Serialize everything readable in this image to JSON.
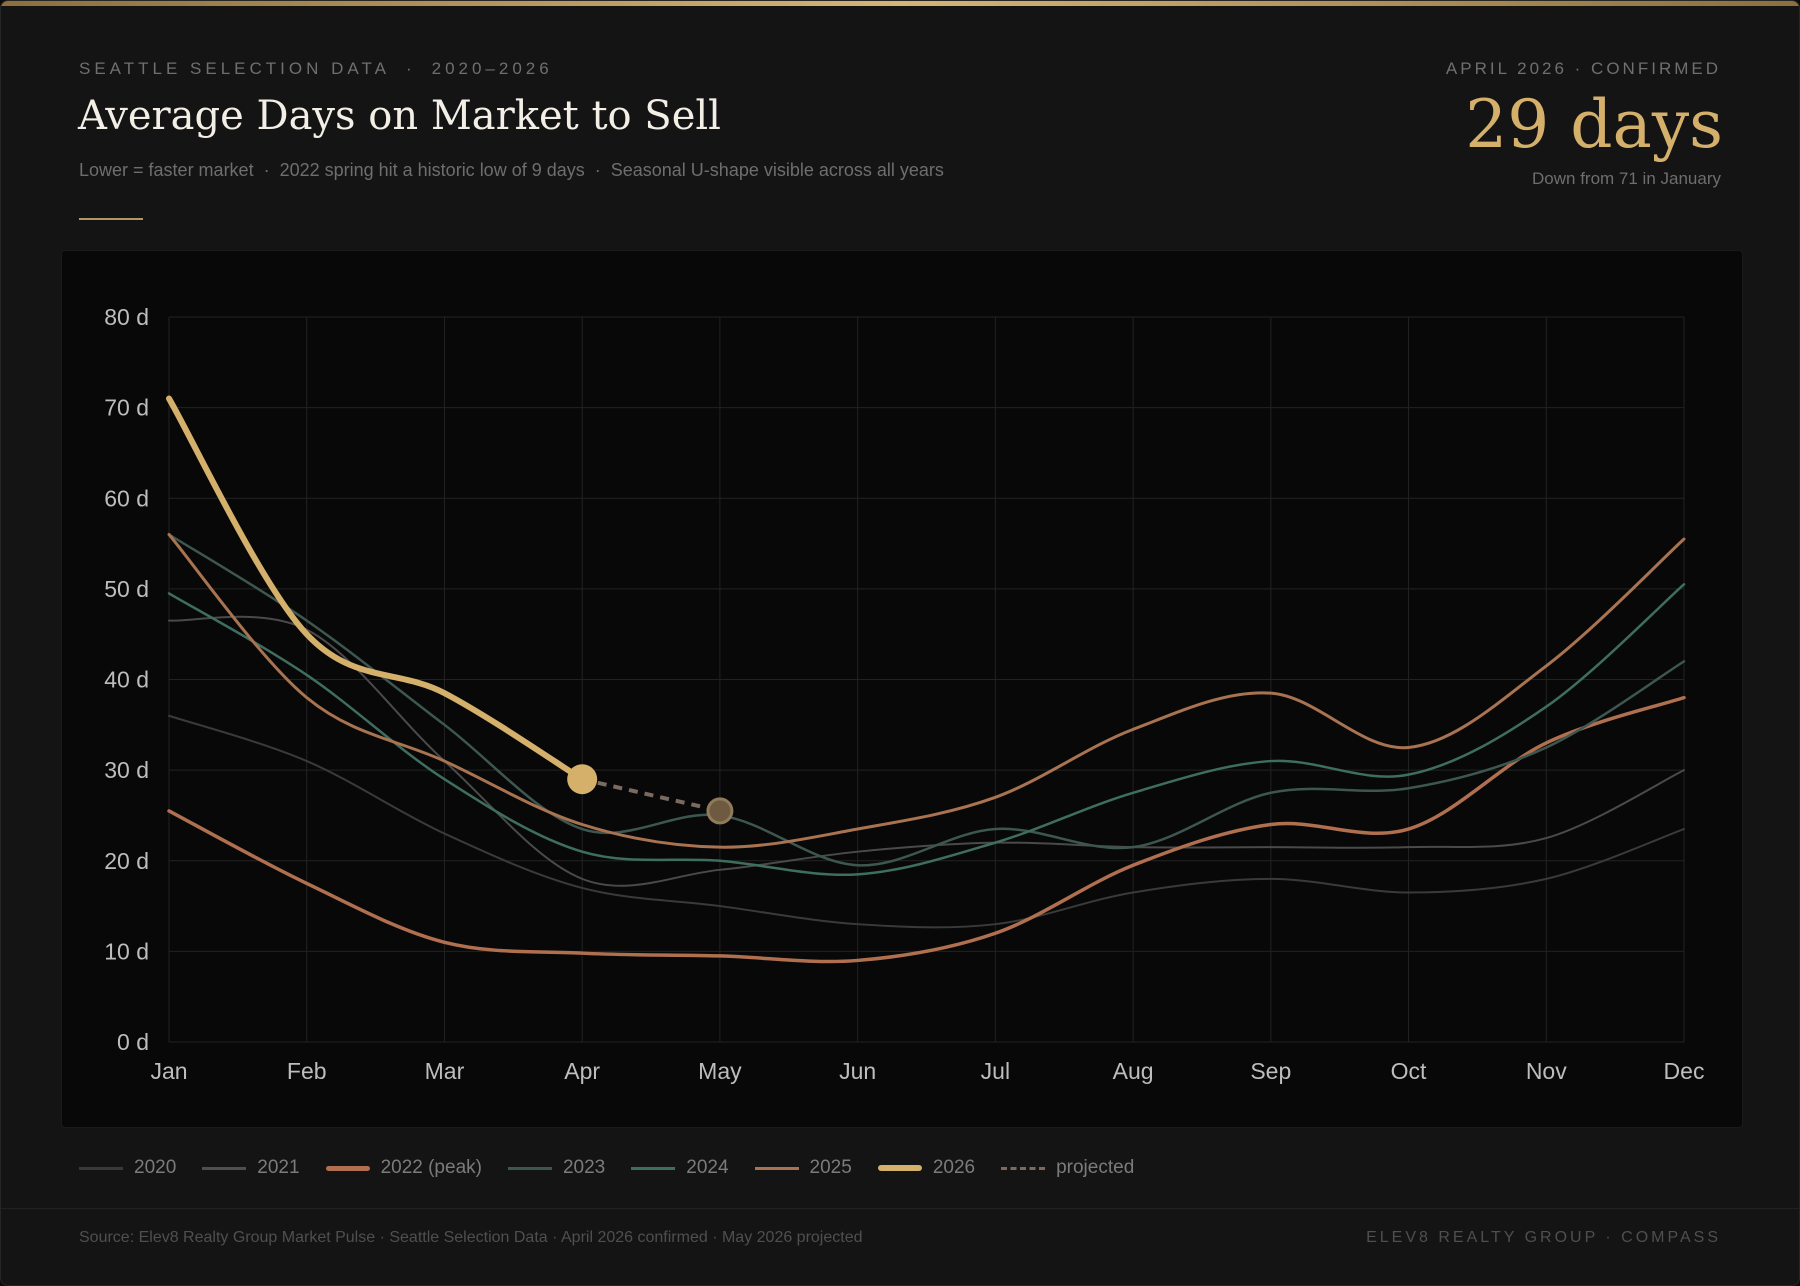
{
  "header": {
    "eyebrow_left": "SEATTLE SELECTION DATA",
    "eyebrow_sep": "·",
    "eyebrow_right": "2020–2026",
    "title": "Average Days on Market to Sell",
    "subtitle_items": [
      "Lower = faster market",
      "2022 spring hit a historic low of 9 days",
      "Seasonal U-shape visible across all years"
    ],
    "subtitle_sep": "·"
  },
  "kpi": {
    "label": "APRIL 2026 · CONFIRMED",
    "value": "29 days",
    "note": "Down from 71 in January"
  },
  "chart_data": {
    "type": "line",
    "title": "Average Days on Market to Sell",
    "categories": [
      "Jan",
      "Feb",
      "Mar",
      "Apr",
      "May",
      "Jun",
      "Jul",
      "Aug",
      "Sep",
      "Oct",
      "Nov",
      "Dec"
    ],
    "y_tick_labels": [
      "0 d",
      "10 d",
      "20 d",
      "30 d",
      "40 d",
      "50 d",
      "60 d",
      "70 d",
      "80 d"
    ],
    "ylim": [
      0,
      80
    ],
    "grid": true,
    "legend_position": "bottom-left",
    "series": [
      {
        "name": "2020",
        "color": "#3a3a3a",
        "values": [
          36,
          31,
          23,
          17,
          15,
          13,
          13,
          16.5,
          18,
          16.5,
          18,
          23.5
        ]
      },
      {
        "name": "2021",
        "color": "#4a4a4a",
        "values": [
          46.5,
          45.5,
          31,
          18,
          19,
          21,
          22,
          21.5,
          21.5,
          21.5,
          22.5,
          30
        ]
      },
      {
        "name": "2022 (peak)",
        "color": "#b07050",
        "values": [
          25.5,
          17.5,
          11,
          9.8,
          9.5,
          9,
          12,
          19.5,
          24,
          23.5,
          33,
          38
        ]
      },
      {
        "name": "2023",
        "color": "#3d5750",
        "values": [
          56,
          46.5,
          35,
          23.5,
          25,
          19.5,
          23.5,
          21.5,
          27.5,
          28,
          32.5,
          42
        ]
      },
      {
        "name": "2024",
        "color": "#3e6e5f",
        "values": [
          49.5,
          40.5,
          29,
          21,
          20,
          18.5,
          22,
          27.5,
          31,
          29.5,
          37,
          50.5
        ]
      },
      {
        "name": "2025",
        "color": "#a87350",
        "values": [
          56,
          38,
          31,
          24,
          21.5,
          23.5,
          27,
          34.5,
          38.5,
          32.5,
          41.5,
          55.5
        ]
      },
      {
        "name": "2026",
        "color": "#d4b06b",
        "values": [
          71,
          45,
          38.5,
          29,
          null,
          null,
          null,
          null,
          null,
          null,
          null,
          null
        ]
      }
    ],
    "projection": {
      "name": "projected",
      "color": "#7a6a60",
      "from": [
        "Apr",
        29
      ],
      "to": [
        "May",
        25.5
      ]
    }
  },
  "legend": {
    "items": [
      {
        "label": "2020",
        "color": "#3a3a3a",
        "weight": 3,
        "dashed": false
      },
      {
        "label": "2021",
        "color": "#4f4f4f",
        "weight": 3,
        "dashed": false
      },
      {
        "label": "2022 (peak)",
        "color": "#b07050",
        "weight": 5,
        "dashed": false
      },
      {
        "label": "2023",
        "color": "#3d5750",
        "weight": 3,
        "dashed": false
      },
      {
        "label": "2024",
        "color": "#3e6e5f",
        "weight": 3,
        "dashed": false
      },
      {
        "label": "2025",
        "color": "#a87350",
        "weight": 3,
        "dashed": false
      },
      {
        "label": "2026",
        "color": "#d4b06b",
        "weight": 6,
        "dashed": false
      },
      {
        "label": "projected",
        "color": "#7a6a60",
        "weight": 3,
        "dashed": true
      }
    ]
  },
  "footer": {
    "source": "Source: Elev8 Realty Group Market Pulse · Seattle Selection Data · April 2026 confirmed · May 2026 projected",
    "brand": "ELEV8 REALTY GROUP · COMPASS"
  }
}
